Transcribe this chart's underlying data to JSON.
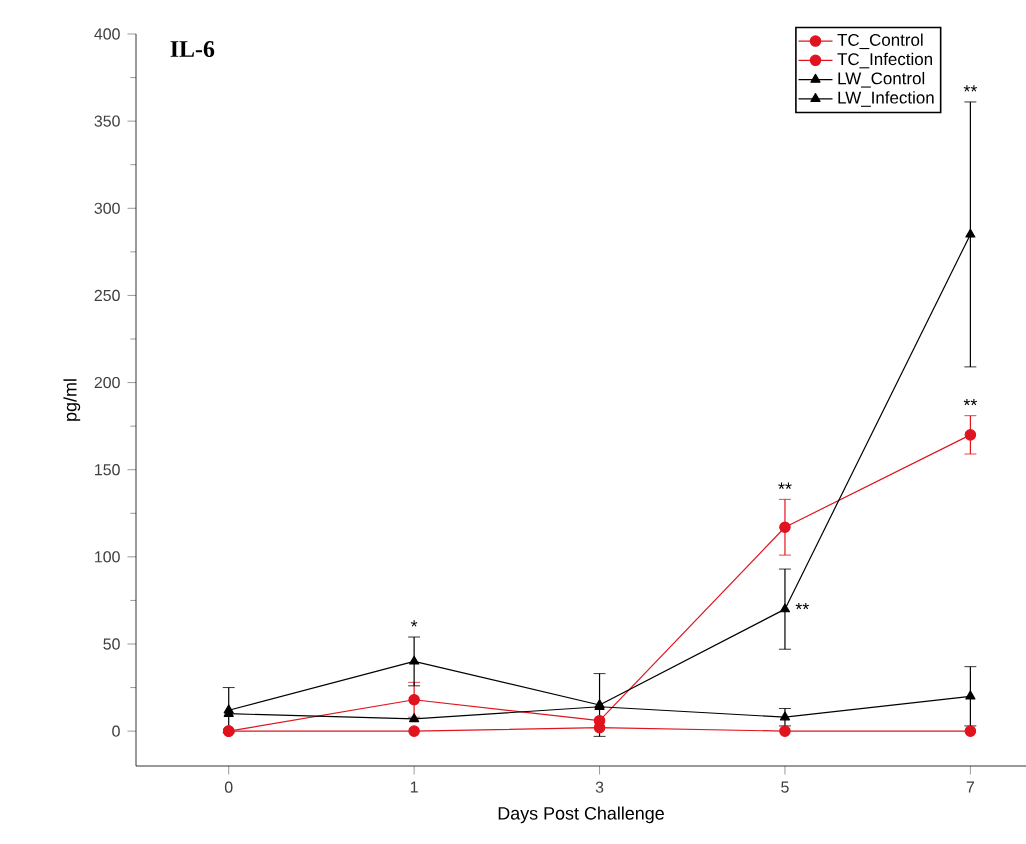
{
  "chart_data": {
    "type": "line",
    "title": "IL-6",
    "xlabel": "Days Post Challenge",
    "ylabel": "pg/ml",
    "categories": [
      "0",
      "1",
      "3",
      "5",
      "7"
    ],
    "series": [
      {
        "name": "TC_Control",
        "color": "#e0141e",
        "marker": "circle",
        "values": [
          0,
          0,
          2,
          0,
          0
        ]
      },
      {
        "name": "TC_Infection",
        "color": "#e0141e",
        "marker": "circle",
        "values": [
          0,
          18,
          6,
          117,
          170
        ],
        "errors": [
          null,
          10,
          null,
          16,
          11
        ]
      },
      {
        "name": "LW_Control",
        "color": "#000000",
        "marker": "triangle",
        "values": [
          10,
          7,
          14,
          8,
          20
        ],
        "errors": [
          null,
          null,
          null,
          5,
          17
        ]
      },
      {
        "name": "LW_Infection",
        "color": "#000000",
        "marker": "triangle",
        "values": [
          12,
          40,
          15,
          70,
          285
        ],
        "errors": [
          13,
          14,
          18,
          23,
          76
        ]
      }
    ],
    "annotations": [
      {
        "text": "*",
        "x": "1",
        "y": 54
      },
      {
        "text": "**",
        "x": "5",
        "y": 133
      },
      {
        "text": "**",
        "x": "5",
        "y": 70
      },
      {
        "text": "**",
        "x": "7",
        "y": 181
      },
      {
        "text": "**",
        "x": "7",
        "y": 361
      }
    ],
    "ylim": [
      -20,
      400
    ],
    "yticks": [
      0,
      50,
      100,
      150,
      200,
      250,
      300,
      350,
      400
    ],
    "legend": "top right",
    "line_style": "solid"
  }
}
